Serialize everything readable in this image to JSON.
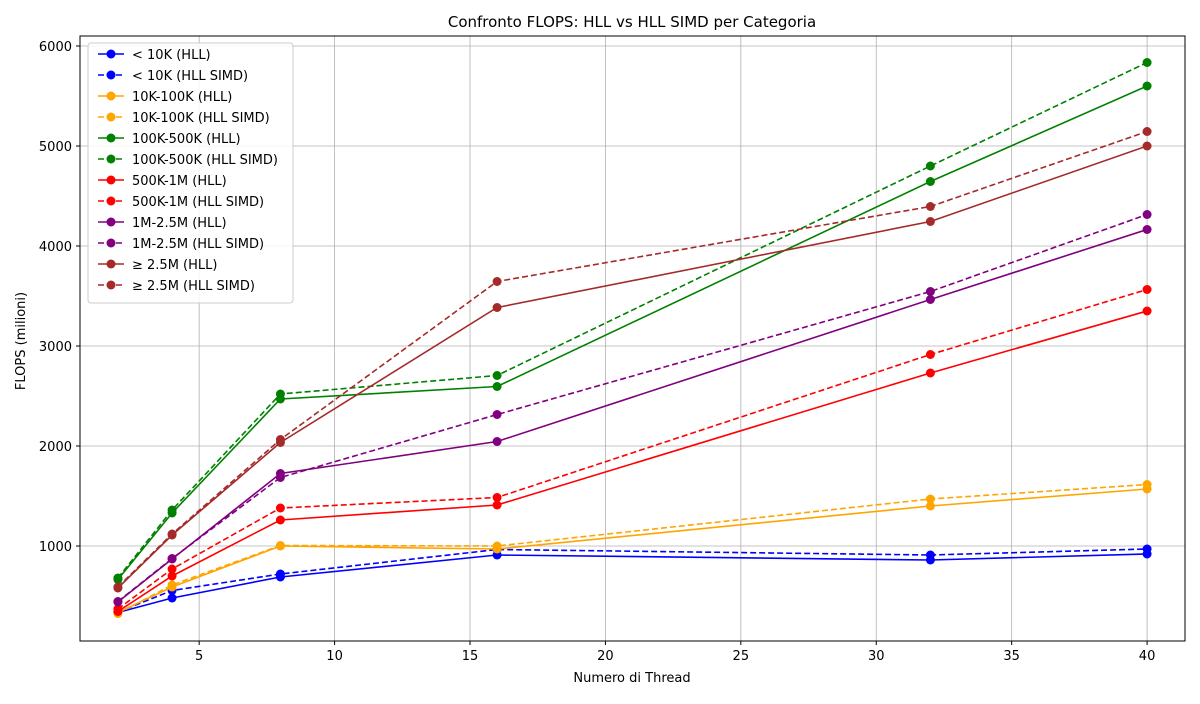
{
  "chart_data": {
    "type": "line",
    "title": "Confronto FLOPS: HLL vs HLL SIMD per Categoria",
    "xlabel": "Numero di Thread",
    "ylabel": "FLOPS (milioni)",
    "x": [
      2,
      4,
      8,
      16,
      32,
      40
    ],
    "xlim": [
      0.6,
      41.4
    ],
    "ylim": [
      50,
      6100
    ],
    "xticks": [
      5,
      10,
      15,
      20,
      25,
      30,
      35,
      40
    ],
    "yticks": [
      1000,
      2000,
      3000,
      4000,
      5000,
      6000
    ],
    "grid": true,
    "legend_position": "top-left",
    "series": [
      {
        "name": "< 10K (HLL)",
        "color": "#0000ff",
        "dash": "solid",
        "values": [
          335,
          480,
          690,
          910,
          860,
          920
        ]
      },
      {
        "name": "< 10K (HLL SIMD)",
        "color": "#0000ff",
        "dash": "dashed",
        "values": [
          340,
          555,
          720,
          965,
          910,
          970
        ]
      },
      {
        "name": "10K-100K (HLL)",
        "color": "#ffa500",
        "dash": "solid",
        "values": [
          335,
          590,
          1000,
          970,
          1400,
          1570
        ]
      },
      {
        "name": "10K-100K (HLL SIMD)",
        "color": "#ffa500",
        "dash": "dashed",
        "values": [
          325,
          610,
          1005,
          1000,
          1470,
          1615
        ]
      },
      {
        "name": "100K-500K (HLL)",
        "color": "#008000",
        "dash": "solid",
        "values": [
          665,
          1330,
          2470,
          2595,
          4645,
          5600
        ]
      },
      {
        "name": "100K-500K (HLL SIMD)",
        "color": "#008000",
        "dash": "dashed",
        "values": [
          680,
          1360,
          2520,
          2705,
          4800,
          5835
        ]
      },
      {
        "name": "500K-1M (HLL)",
        "color": "#ff0000",
        "dash": "solid",
        "values": [
          345,
          700,
          1260,
          1410,
          2730,
          3350
        ]
      },
      {
        "name": "500K-1M (HLL SIMD)",
        "color": "#ff0000",
        "dash": "dashed",
        "values": [
          370,
          770,
          1380,
          1485,
          2915,
          3565
        ]
      },
      {
        "name": "1M-2.5M (HLL)",
        "color": "#800080",
        "dash": "solid",
        "values": [
          440,
          870,
          1725,
          2045,
          3465,
          4165
        ]
      },
      {
        "name": "1M-2.5M (HLL SIMD)",
        "color": "#800080",
        "dash": "dashed",
        "values": [
          445,
          875,
          1685,
          2315,
          3545,
          4315
        ]
      },
      {
        "name": "≥ 2.5M (HLL)",
        "color": "#a52a2a",
        "dash": "solid",
        "values": [
          580,
          1110,
          2035,
          3385,
          4245,
          5000
        ]
      },
      {
        "name": "≥ 2.5M (HLL SIMD)",
        "color": "#a52a2a",
        "dash": "dashed",
        "values": [
          590,
          1120,
          2065,
          3645,
          4395,
          5145
        ]
      }
    ]
  }
}
